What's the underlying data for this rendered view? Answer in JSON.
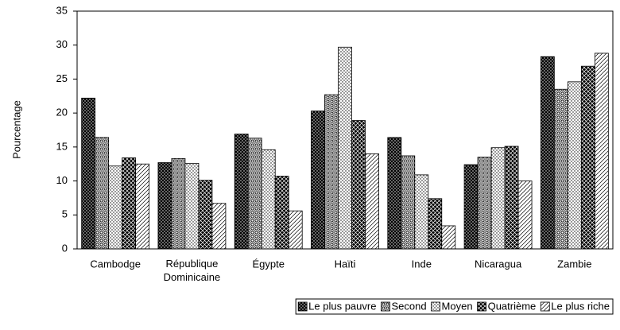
{
  "chart_data": {
    "type": "bar",
    "ylabel": "Pourcentage",
    "categories": [
      "Cambodge",
      "République Dominicaine",
      "Égypte",
      "Haïti",
      "Inde",
      "Nicaragua",
      "Zambie"
    ],
    "series": [
      {
        "name": "Le plus pauvre",
        "color": "#000000",
        "pattern": "dense-dots",
        "values": [
          22.2,
          12.7,
          16.9,
          20.3,
          16.4,
          12.4,
          28.3
        ]
      },
      {
        "name": "Second",
        "color": "#ffffff",
        "pattern": "rings",
        "values": [
          16.4,
          13.3,
          16.3,
          22.7,
          13.7,
          13.5,
          23.5
        ]
      },
      {
        "name": "Moyen",
        "color": "#ffffff",
        "pattern": "dots",
        "values": [
          12.2,
          12.6,
          14.6,
          29.7,
          10.9,
          14.9,
          24.6
        ]
      },
      {
        "name": "Quatrième",
        "color": "#000000",
        "pattern": "cross",
        "values": [
          13.4,
          10.1,
          10.7,
          18.9,
          7.4,
          15.1,
          26.9
        ]
      },
      {
        "name": "Le plus riche",
        "color": "#ffffff",
        "pattern": "diagonal",
        "values": [
          12.5,
          6.7,
          5.6,
          14.0,
          3.4,
          10.0,
          28.8
        ]
      }
    ],
    "ylim": [
      0,
      35
    ],
    "yticks": [
      0,
      5,
      10,
      15,
      20,
      25,
      30,
      35
    ],
    "legend": "bottom"
  }
}
